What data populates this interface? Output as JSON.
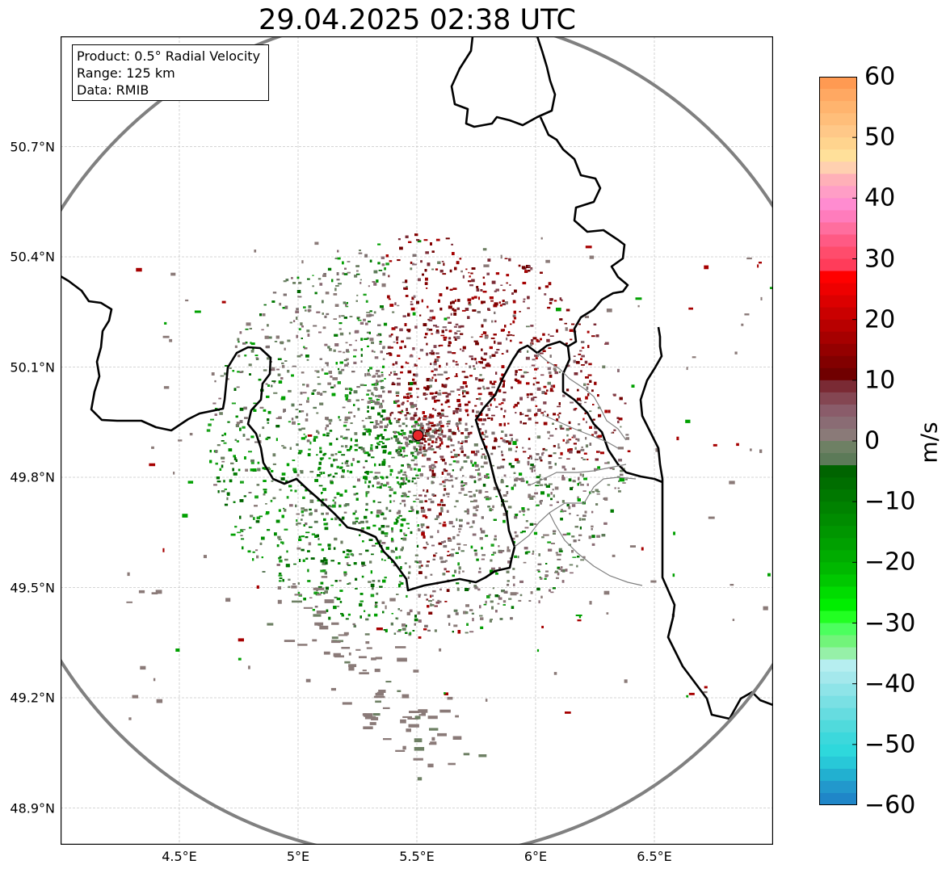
{
  "title": "29.04.2025 02:38 UTC",
  "info_box": {
    "product": "Product: 0.5° Radial Velocity",
    "range": "Range: 125 km",
    "data": "Data: RMIB"
  },
  "axes": {
    "lat_ticks": [
      "50.7°N",
      "50.4°N",
      "50.1°N",
      "49.8°N",
      "49.5°N",
      "49.2°N",
      "48.9°N"
    ],
    "lat_values": [
      50.7,
      50.4,
      50.1,
      49.8,
      49.5,
      49.2,
      48.9
    ],
    "lon_ticks": [
      "4.5°E",
      "5°E",
      "5.5°E",
      "6°E",
      "6.5°E"
    ],
    "lon_values": [
      4.5,
      5.0,
      5.5,
      6.0,
      6.5
    ],
    "lon_range": [
      4.0,
      7.0
    ],
    "lat_range": [
      48.8,
      51.0
    ],
    "grid": true
  },
  "radar_site": {
    "lon": 5.505,
    "lat": 49.914,
    "color": "#e8262a"
  },
  "range_ring_km": 125,
  "colorbar": {
    "unit": "m/s",
    "range": [
      -60,
      60
    ],
    "ticks": [
      "60",
      "50",
      "40",
      "30",
      "20",
      "10",
      "0",
      "−10",
      "−20",
      "−30",
      "−40",
      "−50",
      "−60"
    ],
    "tick_values": [
      60,
      50,
      40,
      30,
      20,
      10,
      0,
      -10,
      -20,
      -30,
      -40,
      -50,
      -60
    ],
    "colors_top_to_bottom": [
      "#ff9a52",
      "#ffa862",
      "#ffb46e",
      "#ffbe7a",
      "#ffc888",
      "#ffd48e",
      "#ffe09a",
      "#ffd0b0",
      "#ffb0b8",
      "#ff9ec6",
      "#ff8cd0",
      "#ff7cbc",
      "#ff6e9e",
      "#ff5a84",
      "#ff4c6c",
      "#ff3c5a",
      "#ff0000",
      "#ee0000",
      "#dc0000",
      "#ca0000",
      "#b80000",
      "#a60000",
      "#940000",
      "#820000",
      "#700000",
      "#7a2a34",
      "#844652",
      "#8a5c6a",
      "#8a6c74",
      "#8a7a78",
      "#6e8064",
      "#5c7a58",
      "#006400",
      "#006e00",
      "#007800",
      "#008200",
      "#008c00",
      "#009600",
      "#00a000",
      "#00ac00",
      "#00b800",
      "#00c800",
      "#00dc00",
      "#00ee00",
      "#22ff22",
      "#4cff5e",
      "#72f47a",
      "#96f0a8",
      "#b6eef0",
      "#a4e8ec",
      "#8ee4e8",
      "#7ae0e4",
      "#66dce0",
      "#50dadc",
      "#3cd8dc",
      "#2ed8dc",
      "#28c8d8",
      "#22b0d0",
      "#2298cc",
      "#1f86c8"
    ]
  }
}
